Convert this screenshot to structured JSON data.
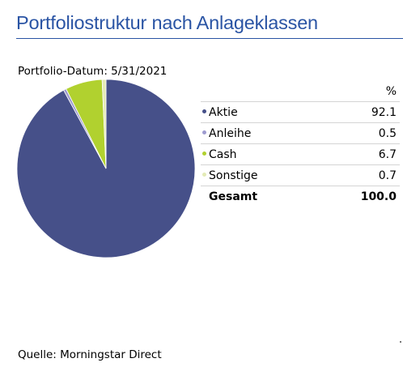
{
  "title": "Portfoliostruktur nach Anlageklassen",
  "date_label": "Portfolio-Datum: 5/31/2021",
  "table": {
    "value_header": "%",
    "rows": [
      {
        "label": "Aktie",
        "value": "92.1",
        "color": "#465089"
      },
      {
        "label": "Anleihe",
        "value": "0.5",
        "color": "#9e9bd0"
      },
      {
        "label": "Cash",
        "value": "6.7",
        "color": "#b1d12f"
      },
      {
        "label": "Sonstige",
        "value": "0.7",
        "color": "#e3eab5"
      }
    ],
    "total_label": "Gesamt",
    "total_value": "100.0"
  },
  "source": "Quelle: Morningstar Direct",
  "chart_data": {
    "type": "pie",
    "title": "Portfoliostruktur nach Anlageklassen",
    "categories": [
      "Aktie",
      "Anleihe",
      "Cash",
      "Sonstige"
    ],
    "values": [
      92.1,
      0.5,
      6.7,
      0.7
    ],
    "colors": [
      "#465089",
      "#9e9bd0",
      "#b1d12f",
      "#e3eab5"
    ],
    "start": "12 o'clock",
    "direction": "clockwise"
  }
}
